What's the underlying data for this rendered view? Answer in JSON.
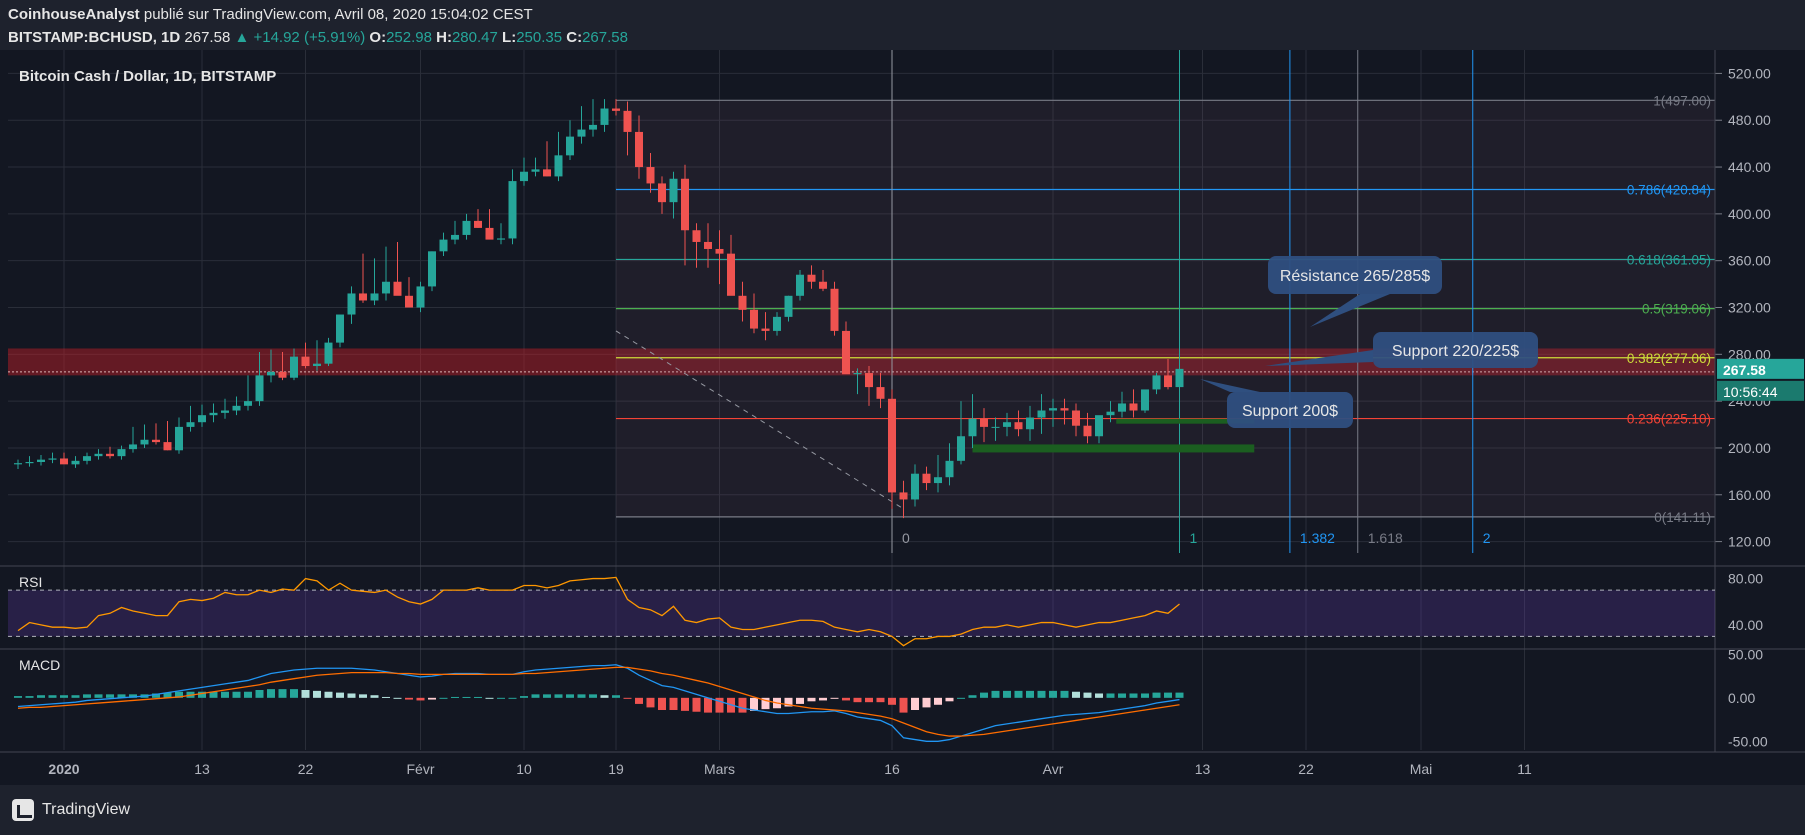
{
  "header": {
    "author": "CoinhouseAnalyst",
    "published": "publié sur TradingView.com, Avril 08, 2020 15:04:02 CEST",
    "symbol": "BITSTAMP:BCHUSD, 1D",
    "price": "267.58",
    "change": "▲ +14.92 (+5.91%)",
    "o_label": "O:",
    "o_value": "252.98",
    "h_label": "H:",
    "h_value": "280.47",
    "l_label": "L:",
    "l_value": "250.35",
    "c_label": "C:",
    "c_value": "267.58"
  },
  "footer": {
    "brand": "TradingView"
  },
  "colors": {
    "bull": "#26a69a",
    "bear": "#ef5350",
    "rsi": "#ff9800",
    "macd": "#2196f3",
    "signal": "#ff6d00",
    "background": "#131722"
  },
  "chart_data": [
    {
      "type": "candlestick",
      "title": "Bitcoin Cash / Dollar, 1D, BITSTAMP",
      "x_labels": [
        "2020",
        "13",
        "22",
        "Févr",
        "10",
        "19",
        "Mars",
        "16",
        "Avr",
        "13",
        "22",
        "Mai",
        "11"
      ],
      "x_label_idx": [
        4,
        16,
        25,
        35,
        44,
        52,
        61,
        76,
        90,
        103,
        112,
        122,
        131
      ],
      "ylim": [
        100,
        540
      ],
      "y_ticks": [
        120,
        160,
        200,
        240,
        280,
        320,
        360,
        400,
        440,
        480,
        520
      ],
      "ohlc_open": [
        186,
        187,
        188,
        190,
        191,
        186,
        189,
        193,
        195,
        193,
        199,
        203,
        207,
        205,
        198,
        218,
        222,
        228,
        230,
        232,
        236,
        240,
        262,
        265,
        260,
        278,
        270,
        272,
        290,
        314,
        332,
        326,
        332,
        342,
        330,
        320,
        338,
        368,
        378,
        382,
        394,
        388,
        378,
        379,
        428,
        436,
        438,
        432,
        450,
        466,
        472,
        476,
        490,
        488,
        470,
        440,
        426,
        410,
        430,
        386,
        376,
        370,
        366,
        330,
        318,
        302,
        300,
        312,
        330,
        348,
        342,
        336,
        300,
        263,
        264,
        252,
        242,
        162,
        156,
        178,
        170,
        175,
        189,
        210,
        225,
        218,
        218,
        222,
        216,
        226,
        232,
        234,
        232,
        219,
        210,
        228,
        231,
        238,
        232,
        250,
        262,
        252
      ],
      "ohlc_high": [
        190,
        193,
        194,
        196,
        196,
        193,
        196,
        199,
        201,
        202,
        218,
        220,
        221,
        223,
        226,
        236,
        237,
        238,
        242,
        244,
        262,
        282,
        284,
        282,
        285,
        290,
        292,
        294,
        298,
        338,
        366,
        362,
        372,
        376,
        346,
        342,
        368,
        384,
        394,
        400,
        404,
        404,
        392,
        438,
        448,
        448,
        462,
        470,
        480,
        492,
        498,
        498,
        498,
        496,
        484,
        452,
        432,
        436,
        442,
        392,
        392,
        386,
        382,
        342,
        332,
        316,
        316,
        330,
        352,
        356,
        352,
        342,
        308,
        268,
        270,
        264,
        250,
        172,
        186,
        184,
        194,
        204,
        240,
        246,
        234,
        226,
        230,
        232,
        236,
        246,
        242,
        242,
        238,
        230,
        226,
        240,
        248,
        250,
        246,
        264,
        276,
        281
      ],
      "ohlc_low": [
        182,
        184,
        185,
        187,
        188,
        183,
        186,
        190,
        191,
        190,
        196,
        200,
        203,
        198,
        195,
        214,
        218,
        222,
        225,
        228,
        232,
        236,
        256,
        258,
        258,
        268,
        266,
        270,
        286,
        306,
        324,
        322,
        326,
        338,
        326,
        316,
        334,
        364,
        374,
        378,
        388,
        384,
        374,
        374,
        424,
        432,
        432,
        428,
        446,
        460,
        466,
        470,
        484,
        450,
        430,
        418,
        400,
        396,
        356,
        354,
        354,
        340,
        338,
        308,
        298,
        292,
        296,
        308,
        326,
        336,
        334,
        296,
        290,
        246,
        236,
        234,
        148,
        140,
        150,
        164,
        162,
        168,
        186,
        200,
        205,
        206,
        210,
        210,
        206,
        212,
        218,
        220,
        210,
        204,
        204,
        222,
        226,
        226,
        230,
        246,
        250,
        250
      ],
      "ohlc_close": [
        187,
        188,
        190,
        191,
        186,
        189,
        193,
        195,
        193,
        199,
        203,
        207,
        205,
        198,
        218,
        222,
        228,
        230,
        232,
        236,
        240,
        262,
        265,
        260,
        278,
        270,
        272,
        290,
        314,
        332,
        326,
        332,
        342,
        330,
        320,
        338,
        368,
        378,
        382,
        394,
        388,
        378,
        379,
        428,
        436,
        438,
        432,
        450,
        466,
        472,
        476,
        490,
        488,
        470,
        440,
        426,
        410,
        430,
        386,
        376,
        370,
        366,
        330,
        318,
        302,
        300,
        312,
        330,
        348,
        342,
        336,
        300,
        263,
        264,
        252,
        242,
        162,
        156,
        178,
        170,
        175,
        189,
        210,
        225,
        218,
        218,
        222,
        216,
        226,
        232,
        234,
        232,
        219,
        210,
        228,
        231,
        238,
        232,
        250,
        262,
        252,
        267.58
      ],
      "fibonacci": {
        "levels": [
          {
            "label": "1(497.00)",
            "value": 497.0,
            "color": "#787b86"
          },
          {
            "label": "0.786(420.84)",
            "value": 420.84,
            "color": "#2196f3"
          },
          {
            "label": "0.618(361.05)",
            "value": 361.05,
            "color": "#26a69a"
          },
          {
            "label": "0.5(319.06)",
            "value": 319.06,
            "color": "#4caf50"
          },
          {
            "label": "0.382(277.06)",
            "value": 277.06,
            "color": "#cddc39"
          },
          {
            "label": "0.236(225.10)",
            "value": 225.1,
            "color": "#f44336"
          },
          {
            "label": "0(141.11)",
            "value": 141.11,
            "color": "#787b86"
          }
        ],
        "time_labels": [
          "0",
          "1",
          "1.382",
          "1.618",
          "2"
        ]
      },
      "annotations": [
        {
          "text": "Résistance 265/285$"
        },
        {
          "text": "Support 220/225$"
        },
        {
          "text": "Support 200$"
        }
      ],
      "last_price": "267.58",
      "countdown": "10:56:44"
    },
    {
      "type": "line",
      "title": "RSI",
      "ylim": [
        20,
        90
      ],
      "y_ticks": [
        40,
        80
      ],
      "bands": [
        30,
        70
      ],
      "values": [
        35,
        42,
        40,
        38,
        38,
        37,
        38,
        48,
        50,
        55,
        52,
        50,
        48,
        48,
        60,
        62,
        61,
        63,
        68,
        66,
        66,
        70,
        68,
        71,
        70,
        80,
        78,
        70,
        76,
        70,
        69,
        68,
        70,
        64,
        60,
        58,
        62,
        70,
        70,
        70,
        72,
        70,
        70,
        70,
        74,
        74,
        72,
        74,
        78,
        79,
        80,
        80,
        81,
        62,
        55,
        53,
        48,
        56,
        44,
        42,
        45,
        46,
        38,
        36,
        36,
        38,
        40,
        42,
        44,
        44,
        43,
        38,
        36,
        34,
        36,
        34,
        30,
        22,
        28,
        28,
        30,
        30,
        32,
        36,
        38,
        38,
        40,
        38,
        40,
        42,
        42,
        40,
        38,
        40,
        42,
        42,
        44,
        46,
        48,
        52,
        50,
        58
      ]
    },
    {
      "type": "macd",
      "title": "MACD",
      "ylim": [
        -60,
        55
      ],
      "y_ticks": [
        -50,
        0,
        50
      ],
      "macd": [
        -10,
        -9,
        -8,
        -7,
        -6,
        -5,
        -3,
        -2,
        -1,
        0,
        1,
        2,
        4,
        6,
        8,
        10,
        12,
        14,
        16,
        18,
        20,
        24,
        28,
        30,
        32,
        33,
        34,
        34,
        34,
        34,
        33,
        32,
        30,
        28,
        26,
        24,
        25,
        27,
        28,
        28,
        28,
        27,
        27,
        27,
        30,
        32,
        33,
        34,
        35,
        36,
        37,
        37,
        38,
        34,
        26,
        20,
        14,
        12,
        8,
        4,
        0,
        -4,
        -8,
        -12,
        -14,
        -16,
        -18,
        -18,
        -17,
        -16,
        -16,
        -15,
        -18,
        -22,
        -24,
        -26,
        -32,
        -46,
        -48,
        -50,
        -50,
        -48,
        -44,
        -40,
        -36,
        -32,
        -30,
        -28,
        -26,
        -24,
        -22,
        -20,
        -19,
        -18,
        -17,
        -15,
        -13,
        -11,
        -9,
        -6,
        -4,
        -2
      ],
      "signal": [
        -12,
        -11,
        -11,
        -10,
        -9,
        -8,
        -7,
        -6,
        -5,
        -4,
        -3,
        -2,
        -1,
        0,
        1,
        3,
        5,
        7,
        9,
        11,
        13,
        15,
        18,
        20,
        22,
        24,
        26,
        27,
        28,
        29,
        29,
        29,
        29,
        28,
        28,
        27,
        27,
        27,
        27,
        27,
        27,
        27,
        27,
        27,
        28,
        28,
        29,
        30,
        31,
        32,
        33,
        34,
        35,
        35,
        33,
        31,
        28,
        26,
        23,
        20,
        17,
        13,
        9,
        5,
        1,
        -3,
        -6,
        -8,
        -10,
        -12,
        -13,
        -14,
        -15,
        -17,
        -19,
        -21,
        -24,
        -29,
        -34,
        -39,
        -42,
        -44,
        -44,
        -43,
        -42,
        -40,
        -38,
        -36,
        -34,
        -32,
        -30,
        -28,
        -26,
        -24,
        -22,
        -20,
        -18,
        -16,
        -14,
        -12,
        -10,
        -8
      ],
      "histogram": [
        2,
        2,
        3,
        3,
        3,
        3,
        4,
        4,
        4,
        4,
        4,
        4,
        5,
        6,
        7,
        7,
        7,
        7,
        7,
        7,
        7,
        9,
        10,
        10,
        10,
        9,
        8,
        7,
        6,
        5,
        4,
        3,
        1,
        0,
        -2,
        -3,
        -2,
        0,
        1,
        1,
        1,
        0,
        0,
        0,
        2,
        4,
        4,
        4,
        4,
        4,
        4,
        3,
        3,
        -1,
        -7,
        -11,
        -14,
        -14,
        -15,
        -16,
        -17,
        -17,
        -17,
        -17,
        -15,
        -13,
        -12,
        -10,
        -7,
        -4,
        -3,
        -1,
        -3,
        -5,
        -5,
        -5,
        -8,
        -17,
        -14,
        -11,
        -8,
        -4,
        0,
        3,
        6,
        8,
        8,
        8,
        8,
        8,
        8,
        8,
        7,
        6,
        5,
        5,
        5,
        5,
        5,
        6,
        6,
        6
      ]
    }
  ]
}
